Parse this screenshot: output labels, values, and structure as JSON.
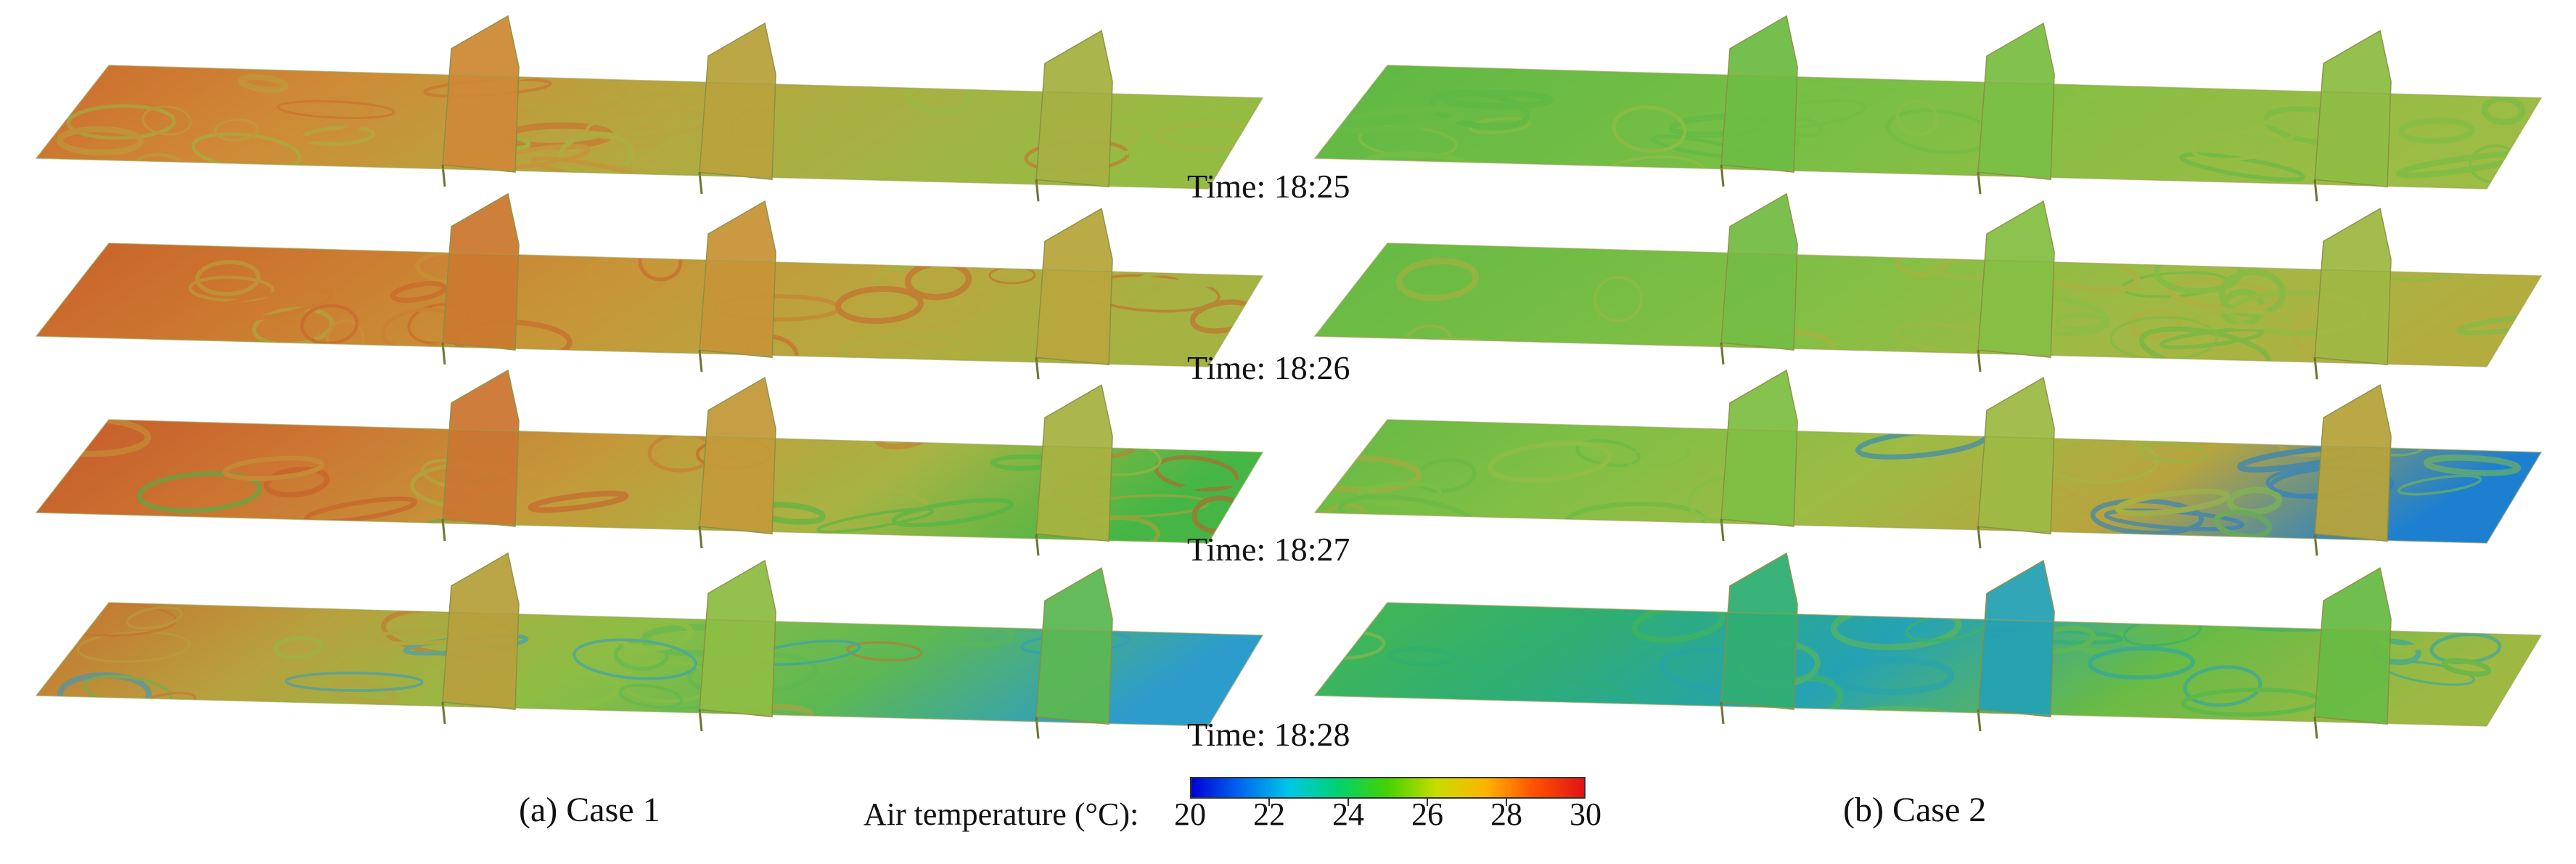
{
  "panels": [
    {
      "caption": "(a) Case 1",
      "case": "Case 1",
      "frames": [
        {
          "time": "Time: 18:25",
          "palette": [
            "#cc6a2e",
            "#cf8a36",
            "#b9a33e",
            "#a6b243",
            "#94bc43"
          ]
        },
        {
          "time": "Time: 18:26",
          "palette": [
            "#c9612a",
            "#cc7a30",
            "#c79538",
            "#b8a73e",
            "#a5b342"
          ]
        },
        {
          "time": "Time: 18:27",
          "palette": [
            "#c65a2b",
            "#cc7632",
            "#c39a3a",
            "#a7b443",
            "#45b645"
          ]
        },
        {
          "time": "Time: 18:28",
          "palette": [
            "#c8702f",
            "#b7a13e",
            "#8fbd44",
            "#5cb853",
            "#2c9ccc"
          ]
        }
      ]
    },
    {
      "caption": "(b) Case 2",
      "case": "Case 2",
      "frames": [
        {
          "time": "",
          "palette": [
            "#5cb845",
            "#6dbc45",
            "#7bbf45",
            "#8fbd44",
            "#9cbc45"
          ]
        },
        {
          "time": "",
          "palette": [
            "#64b945",
            "#74bd45",
            "#86bf45",
            "#a0b944",
            "#b3ad40"
          ]
        },
        {
          "time": "",
          "palette": [
            "#64b945",
            "#80bf45",
            "#9dbb45",
            "#b7a43e",
            "#1e7fd0"
          ]
        },
        {
          "time": "",
          "palette": [
            "#46b84f",
            "#2fae73",
            "#25a2b4",
            "#69bb45",
            "#9db944"
          ]
        }
      ]
    }
  ],
  "colorbar": {
    "title": "Air temperature (°C):",
    "min": 20,
    "max": 30,
    "ticks": [
      "20",
      "22",
      "24",
      "26",
      "28",
      "30"
    ],
    "colormap": [
      "#0000d8",
      "#0068f0",
      "#00c8e6",
      "#00d26e",
      "#46d200",
      "#c8dc00",
      "#ffb400",
      "#ff5000",
      "#e01414"
    ]
  }
}
